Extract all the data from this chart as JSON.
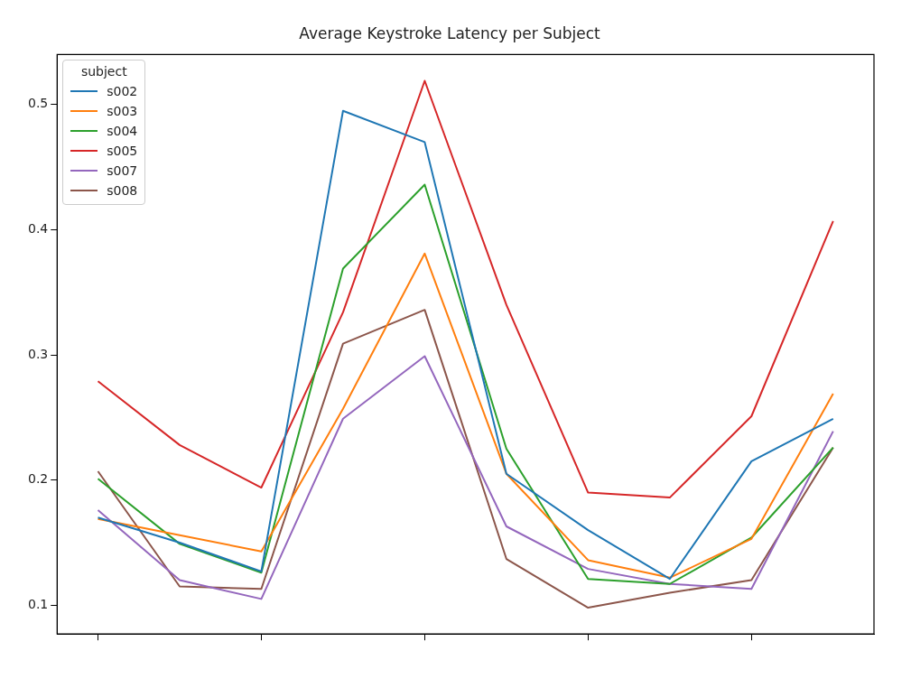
{
  "chart_data": {
    "type": "line",
    "title": "Average Keystroke Latency per Subject",
    "legend_title": "subject",
    "categories": [
      null,
      null,
      null,
      null,
      null,
      null,
      null,
      null,
      null,
      null
    ],
    "series": [
      {
        "name": "s002",
        "color": "#1f77b4",
        "values": [
          0.17,
          0.15,
          0.127,
          0.495,
          0.47,
          0.205,
          0.16,
          0.121,
          0.215,
          0.249
        ]
      },
      {
        "name": "s003",
        "color": "#ff7f0e",
        "values": [
          0.169,
          0.156,
          0.143,
          0.257,
          0.381,
          0.205,
          0.136,
          0.122,
          0.153,
          0.269
        ]
      },
      {
        "name": "s004",
        "color": "#2ca02c",
        "values": [
          0.201,
          0.149,
          0.126,
          0.369,
          0.436,
          0.225,
          0.121,
          0.117,
          0.154,
          0.226
        ]
      },
      {
        "name": "s005",
        "color": "#d62728",
        "values": [
          0.279,
          0.228,
          0.194,
          0.334,
          0.519,
          0.34,
          0.19,
          0.186,
          0.251,
          0.407
        ]
      },
      {
        "name": "s007",
        "color": "#9467bd",
        "values": [
          0.176,
          0.12,
          0.105,
          0.249,
          0.299,
          0.163,
          0.129,
          0.117,
          0.113,
          0.239
        ]
      },
      {
        "name": "s008",
        "color": "#8c564b",
        "values": [
          0.207,
          0.115,
          0.113,
          0.309,
          0.336,
          0.137,
          0.098,
          0.11,
          0.12,
          0.226
        ]
      }
    ],
    "ylim": [
      0.077,
      0.54
    ],
    "yticks": [
      0.1,
      0.2,
      0.3,
      0.4,
      0.5
    ],
    "grid": false,
    "legend": "top left",
    "marker": "none",
    "line_style": "solid"
  }
}
